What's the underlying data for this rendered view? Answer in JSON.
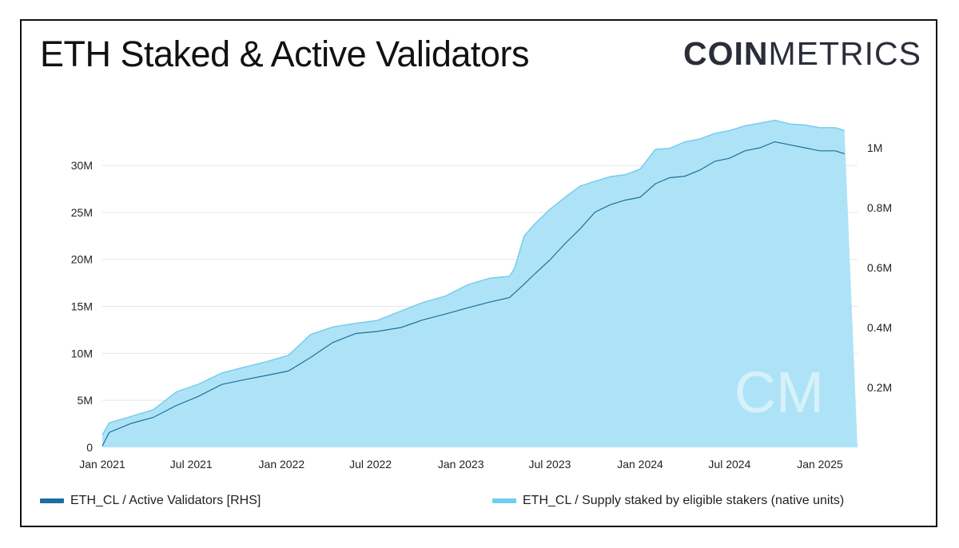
{
  "title": "ETH Staked & Active Validators",
  "logo": {
    "bold": "COIN",
    "light": "METRICS",
    "color": "#2b2e3a",
    "watermark": "CM"
  },
  "colors": {
    "area_fill": "#aee3f7",
    "area_stroke": "#77cdec",
    "line": "#1f6f99",
    "grid": "#e6e6e6",
    "legend_area": "#6fcdf0",
    "legend_line": "#1d6fa0"
  },
  "chart_data": {
    "type": "area",
    "title": "ETH Staked & Active Validators",
    "xlabel": "",
    "ylabel": "",
    "x_ticks": [
      "Jan 2021",
      "Jul 2021",
      "Jan 2022",
      "Jul 2022",
      "Jan 2023",
      "Jul 2023",
      "Jan 2024",
      "Jul 2024",
      "Jan 2025"
    ],
    "y_left": {
      "ticks": [
        "0",
        "5M",
        "10M",
        "15M",
        "20M",
        "25M",
        "30M"
      ],
      "tick_values": [
        0,
        5000000,
        10000000,
        15000000,
        20000000,
        25000000,
        30000000
      ],
      "range": [
        0,
        36000000
      ]
    },
    "y_right": {
      "ticks": [
        "0.2M",
        "0.4M",
        "0.6M",
        "0.8M",
        "1M"
      ],
      "tick_values": [
        200000,
        400000,
        600000,
        800000,
        1000000
      ],
      "range": [
        0,
        1000000
      ]
    },
    "grid": true,
    "legend_position": "bottom",
    "series": [
      {
        "name": "ETH_CL / Supply staked by eligible stakers (native units)",
        "kind": "area",
        "axis": "left",
        "x": [
          "2020-12-01",
          "2021-01-15",
          "2021-03-01",
          "2021-04-15",
          "2021-06-01",
          "2021-07-15",
          "2021-09-01",
          "2021-10-15",
          "2021-12-01",
          "2022-01-15",
          "2022-03-01",
          "2022-04-15",
          "2022-06-01",
          "2022-07-15",
          "2022-09-01",
          "2022-10-15",
          "2022-12-01",
          "2023-01-15",
          "2023-03-01",
          "2023-04-10",
          "2023-04-20",
          "2023-05-10",
          "2023-06-01",
          "2023-07-01",
          "2023-08-01",
          "2023-09-01",
          "2023-10-01",
          "2023-11-01",
          "2023-12-01",
          "2024-01-01",
          "2024-02-01",
          "2024-03-01",
          "2024-04-01",
          "2024-05-01",
          "2024-06-01",
          "2024-07-01",
          "2024-08-01",
          "2024-09-01",
          "2024-10-01",
          "2024-11-01",
          "2024-12-01",
          "2025-01-01",
          "2025-02-01",
          "2025-02-20"
        ],
        "values": [
          1300000,
          2600000,
          3300000,
          4000000,
          5900000,
          6700000,
          7900000,
          8500000,
          9100000,
          9800000,
          12000000,
          12800000,
          13200000,
          13500000,
          14500000,
          15400000,
          16100000,
          17300000,
          18000000,
          18200000,
          19000000,
          22500000,
          23800000,
          25300000,
          26600000,
          27800000,
          28300000,
          28800000,
          29000000,
          29600000,
          31700000,
          31800000,
          32500000,
          32800000,
          33400000,
          33700000,
          34200000,
          34500000,
          34800000,
          34400000,
          34300000,
          34000000,
          34000000,
          33700000
        ]
      },
      {
        "name": "ETH_CL / Active Validators [RHS]",
        "kind": "line",
        "axis": "right",
        "x": [
          "2020-12-01",
          "2021-01-15",
          "2021-03-01",
          "2021-04-15",
          "2021-06-01",
          "2021-07-15",
          "2021-09-01",
          "2021-10-15",
          "2021-12-01",
          "2022-01-15",
          "2022-03-01",
          "2022-04-15",
          "2022-06-01",
          "2022-07-15",
          "2022-09-01",
          "2022-10-15",
          "2022-12-01",
          "2023-01-15",
          "2023-03-01",
          "2023-04-10",
          "2023-04-20",
          "2023-05-10",
          "2023-06-01",
          "2023-07-01",
          "2023-08-01",
          "2023-09-01",
          "2023-10-01",
          "2023-11-01",
          "2023-12-01",
          "2024-01-01",
          "2024-02-01",
          "2024-03-01",
          "2024-04-01",
          "2024-05-01",
          "2024-06-01",
          "2024-07-01",
          "2024-08-01",
          "2024-09-01",
          "2024-10-01",
          "2024-11-01",
          "2024-12-01",
          "2025-01-01",
          "2025-02-01",
          "2025-02-20"
        ],
        "values": [
          4000,
          50000,
          80000,
          100000,
          140000,
          170000,
          210000,
          225000,
          240000,
          255000,
          300000,
          350000,
          380000,
          387000,
          400000,
          425000,
          445000,
          466000,
          485000,
          500000,
          515000,
          545000,
          580000,
          625000,
          680000,
          730000,
          785000,
          810000,
          825000,
          835000,
          880000,
          900000,
          905000,
          925000,
          955000,
          965000,
          990000,
          1000000,
          1020000,
          1010000,
          1000000,
          990000,
          990000,
          980000
        ]
      }
    ]
  },
  "legend": [
    {
      "label": "ETH_CL / Active Validators [RHS]",
      "color": "#1d6fa0"
    },
    {
      "label": "ETH_CL / Supply staked by eligible stakers (native units)",
      "color": "#6fcdf0"
    }
  ]
}
